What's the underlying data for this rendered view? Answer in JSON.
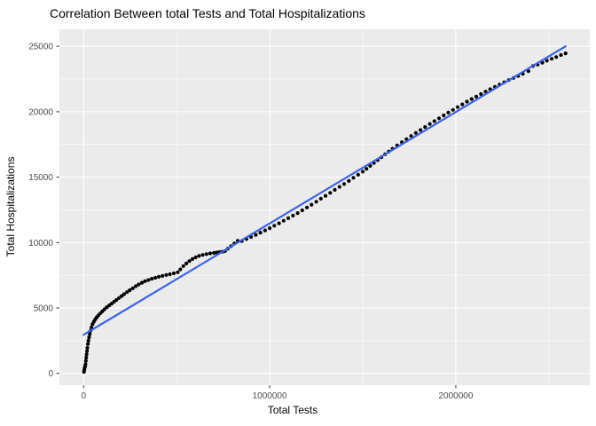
{
  "chart_data": {
    "type": "scatter",
    "title": "Correlation Between total Tests and Total Hospitalizations",
    "xlabel": "Total Tests",
    "ylabel": "Total Hospitalizations",
    "legend": "none",
    "grid": true,
    "theme": "ggplot-grey",
    "xlim": [
      -130000,
      2720000
    ],
    "ylim": [
      -900,
      26300
    ],
    "x_ticks": [
      0,
      1000000,
      2000000
    ],
    "x_tick_labels": [
      "0",
      "1000000",
      "2000000"
    ],
    "x_minor_ticks": [
      500000,
      1500000,
      2500000
    ],
    "y_ticks": [
      0,
      5000,
      10000,
      15000,
      20000,
      25000
    ],
    "y_tick_labels": [
      "0",
      "5000",
      "10000",
      "15000",
      "20000",
      "25000"
    ],
    "y_minor_ticks": [
      2500,
      7500,
      12500,
      17500,
      22500
    ],
    "colors": {
      "panel_bg": "#EBEBEB",
      "grid": "#FFFFFF",
      "point": "#000000",
      "smooth_line": "#3A64E4",
      "tick_text": "#4D4D4D",
      "tick_mark": "#333333",
      "title_text": "#000000"
    },
    "smooth_line": {
      "x1": 0,
      "y1": 2950,
      "x2": 2590000,
      "y2": 25000
    },
    "points": [
      [
        2000,
        120
      ],
      [
        4000,
        280
      ],
      [
        6000,
        430
      ],
      [
        8000,
        560
      ],
      [
        10000,
        700
      ],
      [
        12000,
        950
      ],
      [
        14000,
        1200
      ],
      [
        16000,
        1450
      ],
      [
        18000,
        1700
      ],
      [
        20000,
        1950
      ],
      [
        23000,
        2250
      ],
      [
        26000,
        2500
      ],
      [
        29000,
        2750
      ],
      [
        33000,
        3000
      ],
      [
        37000,
        3250
      ],
      [
        42000,
        3500
      ],
      [
        48000,
        3750
      ],
      [
        55000,
        3950
      ],
      [
        62000,
        4120
      ],
      [
        70000,
        4280
      ],
      [
        79000,
        4430
      ],
      [
        89000,
        4580
      ],
      [
        100000,
        4740
      ],
      [
        112000,
        4900
      ],
      [
        125000,
        5060
      ],
      [
        138000,
        5200
      ],
      [
        150000,
        5330
      ],
      [
        163000,
        5470
      ],
      [
        176000,
        5610
      ],
      [
        190000,
        5760
      ],
      [
        204000,
        5910
      ],
      [
        218000,
        6060
      ],
      [
        233000,
        6210
      ],
      [
        248000,
        6360
      ],
      [
        264000,
        6510
      ],
      [
        280000,
        6660
      ],
      [
        296000,
        6800
      ],
      [
        313000,
        6930
      ],
      [
        330000,
        7040
      ],
      [
        348000,
        7140
      ],
      [
        366000,
        7230
      ],
      [
        385000,
        7310
      ],
      [
        404000,
        7380
      ],
      [
        424000,
        7450
      ],
      [
        444000,
        7520
      ],
      [
        464000,
        7580
      ],
      [
        485000,
        7650
      ],
      [
        506000,
        7730
      ],
      [
        520000,
        7950
      ],
      [
        536000,
        8200
      ],
      [
        552000,
        8400
      ],
      [
        568000,
        8580
      ],
      [
        585000,
        8740
      ],
      [
        602000,
        8870
      ],
      [
        620000,
        8980
      ],
      [
        640000,
        9060
      ],
      [
        660000,
        9120
      ],
      [
        680000,
        9170
      ],
      [
        700000,
        9210
      ],
      [
        715000,
        9240
      ],
      [
        730000,
        9270
      ],
      [
        745000,
        9300
      ],
      [
        760000,
        9350
      ],
      [
        775000,
        9530
      ],
      [
        792000,
        9720
      ],
      [
        810000,
        9930
      ],
      [
        828000,
        10130
      ],
      [
        850000,
        10110
      ],
      [
        875000,
        10270
      ],
      [
        900000,
        10430
      ],
      [
        925000,
        10590
      ],
      [
        950000,
        10760
      ],
      [
        975000,
        10930
      ],
      [
        1000000,
        11100
      ],
      [
        1025000,
        11290
      ],
      [
        1050000,
        11470
      ],
      [
        1075000,
        11670
      ],
      [
        1100000,
        11860
      ],
      [
        1125000,
        12060
      ],
      [
        1150000,
        12250
      ],
      [
        1175000,
        12460
      ],
      [
        1200000,
        12680
      ],
      [
        1225000,
        12900
      ],
      [
        1250000,
        13120
      ],
      [
        1275000,
        13350
      ],
      [
        1300000,
        13570
      ],
      [
        1325000,
        13800
      ],
      [
        1350000,
        14030
      ],
      [
        1375000,
        14260
      ],
      [
        1400000,
        14480
      ],
      [
        1425000,
        14710
      ],
      [
        1450000,
        14950
      ],
      [
        1475000,
        15180
      ],
      [
        1500000,
        15420
      ],
      [
        1520000,
        15640
      ],
      [
        1540000,
        15860
      ],
      [
        1560000,
        16080
      ],
      [
        1580000,
        16300
      ],
      [
        1600000,
        16520
      ],
      [
        1620000,
        16750
      ],
      [
        1640000,
        16960
      ],
      [
        1660000,
        17170
      ],
      [
        1685000,
        17420
      ],
      [
        1710000,
        17670
      ],
      [
        1735000,
        17900
      ],
      [
        1760000,
        18150
      ],
      [
        1785000,
        18380
      ],
      [
        1810000,
        18600
      ],
      [
        1835000,
        18830
      ],
      [
        1860000,
        19060
      ],
      [
        1885000,
        19280
      ],
      [
        1910000,
        19500
      ],
      [
        1935000,
        19720
      ],
      [
        1960000,
        19930
      ],
      [
        1985000,
        20140
      ],
      [
        2010000,
        20350
      ],
      [
        2035000,
        20560
      ],
      [
        2060000,
        20770
      ],
      [
        2085000,
        20970
      ],
      [
        2110000,
        21160
      ],
      [
        2135000,
        21350
      ],
      [
        2160000,
        21540
      ],
      [
        2185000,
        21720
      ],
      [
        2210000,
        21900
      ],
      [
        2235000,
        22070
      ],
      [
        2260000,
        22250
      ],
      [
        2285000,
        22420
      ],
      [
        2310000,
        22580
      ],
      [
        2335000,
        22740
      ],
      [
        2360000,
        22900
      ],
      [
        2390000,
        23100
      ],
      [
        2415000,
        23500
      ],
      [
        2440000,
        23600
      ],
      [
        2465000,
        23750
      ],
      [
        2490000,
        23900
      ],
      [
        2515000,
        24050
      ],
      [
        2540000,
        24180
      ],
      [
        2565000,
        24330
      ],
      [
        2590000,
        24460
      ]
    ]
  }
}
